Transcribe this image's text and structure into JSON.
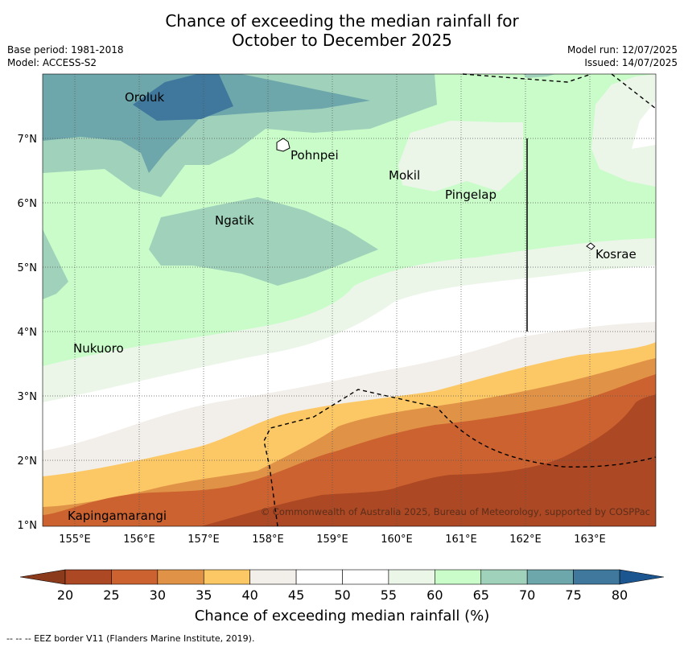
{
  "header": {
    "title_line1": "Chance of exceeding the median rainfall for",
    "title_line2": "October to December 2025",
    "base_period": "Base period: 1981-2018",
    "model": "Model: ACCESS-S2",
    "model_run": "Model run: 12/07/2025",
    "issued": "Issued: 14/07/2025"
  },
  "map": {
    "lon_labels": [
      "155°E",
      "156°E",
      "157°E",
      "158°E",
      "159°E",
      "160°E",
      "161°E",
      "162°E",
      "163°E"
    ],
    "lat_labels": [
      "7°N",
      "6°N",
      "5°N",
      "4°N",
      "3°N",
      "2°N",
      "1°N"
    ],
    "places": [
      "Oroluk",
      "Pohnpei",
      "Mokil",
      "Pingelap",
      "Ngatik",
      "Kosrae",
      "Nukuoro",
      "Kapingamarangi"
    ],
    "copyright": "© Commonwealth of Australia 2025, Bureau of Meteorology, supported by COSPPac"
  },
  "colorbar": {
    "ticks": [
      "20",
      "25",
      "30",
      "35",
      "40",
      "45",
      "50",
      "55",
      "60",
      "65",
      "70",
      "75",
      "80"
    ],
    "colors": [
      "#ad4824",
      "#cc622f",
      "#e09346",
      "#fcc865",
      "#f2eee9",
      "#ffffff",
      "#ffffff",
      "#ebf6e9",
      "#c9fcc9",
      "#9fd1bb",
      "#6ea7ab",
      "#3f789c"
    ],
    "under_color": "#8b3a1c",
    "over_color": "#1c5690",
    "title": "Chance of exceeding median rainfall (%)"
  },
  "footer": {
    "eez_note": "-- -- -- EEZ border V11 (Flanders Marine Institute, 2019)."
  }
}
